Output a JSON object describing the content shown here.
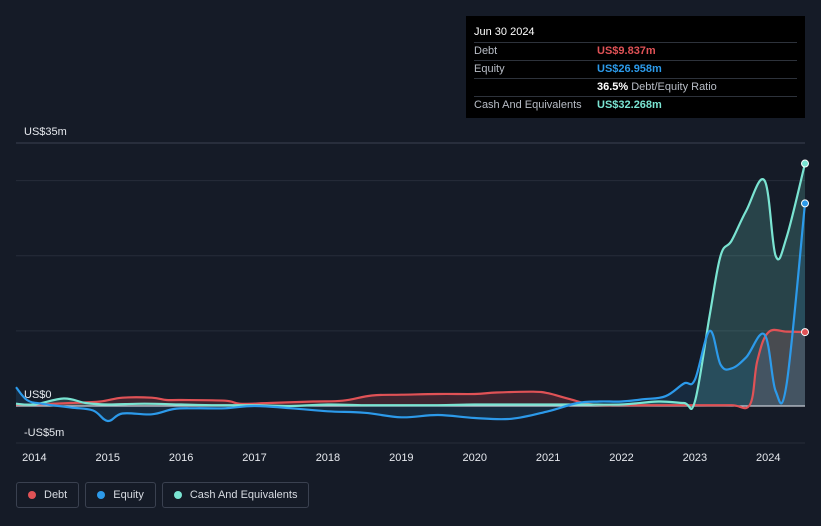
{
  "tooltip": {
    "date": "Jun 30 2024",
    "debt_label": "Debt",
    "debt_value": "US$9.837m",
    "equity_label": "Equity",
    "equity_value": "US$26.958m",
    "ratio_value": "36.5%",
    "ratio_label": "Debt/Equity Ratio",
    "cash_label": "Cash And Equivalents",
    "cash_value": "US$32.268m"
  },
  "colors": {
    "debt": "#e05256",
    "equity": "#2c9aea",
    "cash": "#7ae4d2",
    "background": "#151b27"
  },
  "chart_data": {
    "type": "line",
    "ylabel_top": "US$35m",
    "ylabel_zero": "US$0",
    "ylabel_bottom": "-US$5m",
    "ylim": [
      -5,
      35
    ],
    "xlim": [
      2013.75,
      2024.5
    ],
    "x_ticks": [
      "2014",
      "2015",
      "2016",
      "2017",
      "2018",
      "2019",
      "2020",
      "2021",
      "2022",
      "2023",
      "2024"
    ],
    "x_tick_values": [
      2014,
      2015,
      2016,
      2017,
      2018,
      2019,
      2020,
      2021,
      2022,
      2023,
      2024
    ],
    "grid": true,
    "legend_position": "bottom-left",
    "series": [
      {
        "name": "Debt",
        "color_key": "debt",
        "x": [
          2013.75,
          2014.0,
          2014.5,
          2014.9,
          2015.2,
          2015.6,
          2015.8,
          2016.0,
          2016.6,
          2016.8,
          2017.2,
          2017.8,
          2018.2,
          2018.6,
          2019.0,
          2019.5,
          2020.0,
          2020.3,
          2020.8,
          2021.0,
          2021.3,
          2021.6,
          2022.0,
          2022.5,
          2023.0,
          2023.5,
          2023.75,
          2023.85,
          2024.0,
          2024.25,
          2024.5
        ],
        "y": [
          0.2,
          0.2,
          0.4,
          0.6,
          1.1,
          1.1,
          0.8,
          0.8,
          0.7,
          0.3,
          0.4,
          0.6,
          0.7,
          1.4,
          1.5,
          1.6,
          1.6,
          1.8,
          1.9,
          1.7,
          0.9,
          0.2,
          0.1,
          0.1,
          0.1,
          0.1,
          0.2,
          6.0,
          9.8,
          9.9,
          9.837
        ]
      },
      {
        "name": "Equity",
        "color_key": "equity",
        "x": [
          2013.75,
          2013.9,
          2014.1,
          2014.5,
          2014.8,
          2015.0,
          2015.2,
          2015.6,
          2015.9,
          2016.2,
          2016.6,
          2017.0,
          2017.5,
          2018.0,
          2018.5,
          2019.0,
          2019.5,
          2020.0,
          2020.5,
          2021.0,
          2021.4,
          2021.7,
          2022.0,
          2022.3,
          2022.6,
          2022.85,
          2023.0,
          2023.2,
          2023.35,
          2023.5,
          2023.7,
          2023.95,
          2024.1,
          2024.25,
          2024.5
        ],
        "y": [
          2.5,
          0.8,
          0.3,
          -0.2,
          -0.6,
          -2.0,
          -1.0,
          -1.1,
          -0.4,
          -0.3,
          -0.3,
          0.0,
          -0.3,
          -0.7,
          -0.9,
          -1.5,
          -1.2,
          -1.6,
          -1.7,
          -0.7,
          0.4,
          0.6,
          0.6,
          0.9,
          1.3,
          3.0,
          3.5,
          10.0,
          5.5,
          5.0,
          6.5,
          9.5,
          2.0,
          3.0,
          26.958
        ]
      },
      {
        "name": "Cash And Equivalents",
        "color_key": "cash",
        "x": [
          2013.75,
          2014.0,
          2014.4,
          2014.7,
          2015.0,
          2015.5,
          2016.0,
          2016.5,
          2017.0,
          2017.5,
          2018.0,
          2018.5,
          2019.0,
          2019.5,
          2020.0,
          2020.5,
          2021.0,
          2021.5,
          2022.0,
          2022.5,
          2022.85,
          2023.0,
          2023.2,
          2023.35,
          2023.5,
          2023.7,
          2023.95,
          2024.1,
          2024.25,
          2024.5
        ],
        "y": [
          0.3,
          0.2,
          1.0,
          0.4,
          0.2,
          0.3,
          0.2,
          0.1,
          0.1,
          0.0,
          0.2,
          0.1,
          0.1,
          0.1,
          0.2,
          0.2,
          0.2,
          0.2,
          0.2,
          0.6,
          0.4,
          0.6,
          12.0,
          20.0,
          22.0,
          26.0,
          30.0,
          20.0,
          22.5,
          32.268
        ]
      }
    ]
  },
  "legend": {
    "debt": "Debt",
    "equity": "Equity",
    "cash": "Cash And Equivalents"
  }
}
